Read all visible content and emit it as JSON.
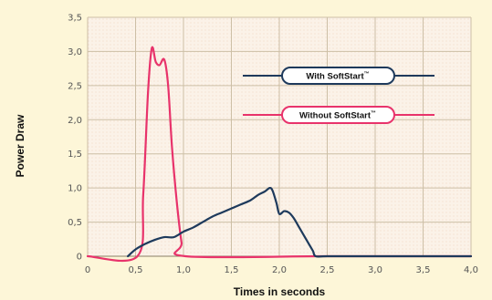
{
  "chart_data": {
    "type": "line",
    "xlabel": "Times in seconds",
    "ylabel": "Power Draw",
    "xlim": [
      0,
      4.0
    ],
    "ylim": [
      0,
      3.5
    ],
    "x_ticks": [
      "0",
      "0,5",
      "1,0",
      "1,5",
      "2,0",
      "2,5",
      "3,0",
      "3,5",
      "4,0"
    ],
    "y_ticks": [
      "0",
      "0,5",
      "1,0",
      "1,5",
      "2,0",
      "2,5",
      "3,0",
      "3,5"
    ],
    "grid": true,
    "legend_position": "top-right",
    "series": [
      {
        "name": "With SoftStart",
        "trademark": "™",
        "color": "#1e3a5c",
        "x": [
          0.42,
          0.5,
          0.6,
          0.7,
          0.8,
          0.9,
          1.0,
          1.1,
          1.2,
          1.3,
          1.4,
          1.5,
          1.6,
          1.7,
          1.78,
          1.85,
          1.9,
          1.93,
          1.97,
          2.0,
          2.05,
          2.1,
          2.15,
          2.2,
          2.25,
          2.3,
          2.35,
          2.38,
          2.5,
          3.0,
          3.5,
          4.0
        ],
        "y": [
          0.0,
          0.1,
          0.18,
          0.24,
          0.28,
          0.28,
          0.36,
          0.42,
          0.5,
          0.58,
          0.64,
          0.7,
          0.76,
          0.82,
          0.9,
          0.95,
          1.0,
          0.96,
          0.78,
          0.62,
          0.66,
          0.64,
          0.56,
          0.44,
          0.32,
          0.2,
          0.08,
          0.0,
          0.0,
          0.0,
          0.0,
          0.0
        ]
      },
      {
        "name": "Without SoftStart",
        "trademark": "™",
        "color": "#e8336b",
        "x": [
          0.0,
          0.52,
          0.58,
          0.63,
          0.67,
          0.71,
          0.75,
          0.8,
          0.84,
          0.88,
          0.93,
          0.98,
          1.02,
          2.4,
          3.0,
          3.5,
          4.0
        ],
        "y": [
          0.0,
          0.0,
          0.9,
          2.4,
          3.05,
          2.85,
          2.8,
          2.88,
          2.5,
          1.6,
          0.8,
          0.2,
          0.0,
          0.0,
          0.0,
          0.0,
          0.0
        ]
      }
    ]
  }
}
